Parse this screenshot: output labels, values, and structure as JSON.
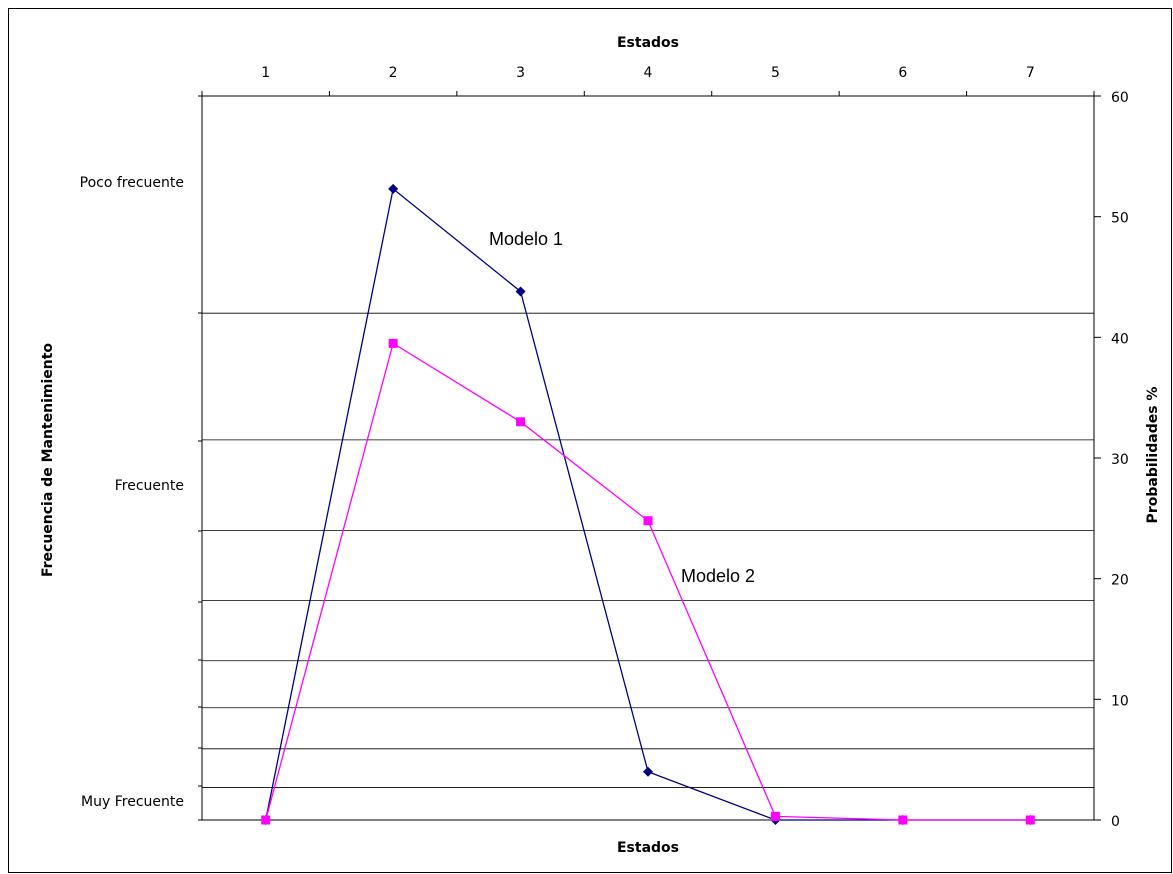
{
  "chart_data": {
    "type": "line",
    "x_top_label": "Estados",
    "x_bottom_label": "Estados",
    "y_left_label": "Frecuencia de Mantenimiento",
    "y_right_label": "Probabilidades %",
    "categories": [
      "1",
      "2",
      "3",
      "4",
      "5",
      "6",
      "7"
    ],
    "left_categories": [
      "Poco frecuente",
      "Frecuente",
      "Muy Frecuente"
    ],
    "ylim": [
      0,
      60
    ],
    "y_ticks": [
      "0",
      "10",
      "20",
      "30",
      "40",
      "50",
      "60"
    ],
    "gridlines": [
      2.7,
      5.9,
      9.3,
      13.2,
      18.2,
      24.0,
      31.5,
      42.0
    ],
    "series": [
      {
        "name": "Modelo 1",
        "color": "#000080",
        "marker": "diamond",
        "values": [
          0,
          52.3,
          43.8,
          4.0,
          0,
          0,
          0
        ]
      },
      {
        "name": "Modelo 2",
        "color": "#ff00ff",
        "marker": "square",
        "values": [
          0,
          39.5,
          33.0,
          24.8,
          0.3,
          0,
          0
        ]
      }
    ]
  }
}
